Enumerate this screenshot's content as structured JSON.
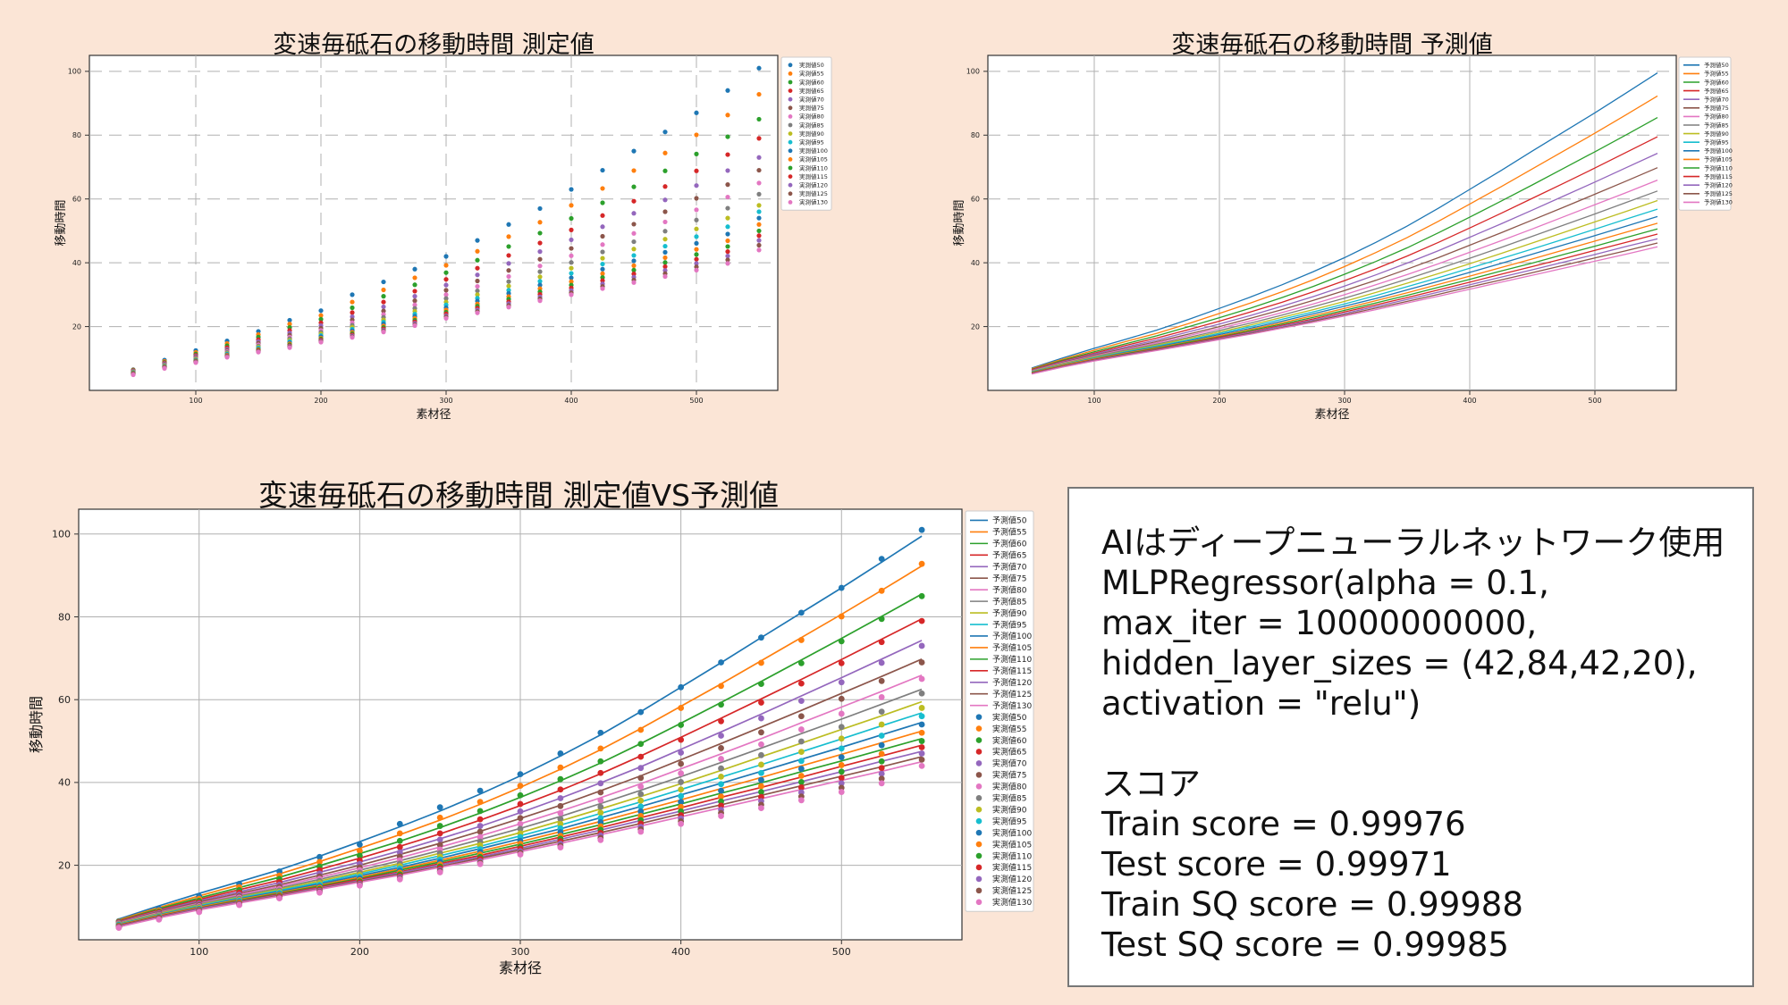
{
  "colors": [
    "#1f77b4",
    "#ff7f0e",
    "#2ca02c",
    "#d62728",
    "#9467bd",
    "#8c564b",
    "#e377c2",
    "#7f7f7f",
    "#bcbd22",
    "#17becf",
    "#1f77b4",
    "#ff7f0e",
    "#2ca02c",
    "#d62728",
    "#9467bd",
    "#8c564b",
    "#e377c2"
  ],
  "chart_data": [
    {
      "type": "scatter",
      "title": "変速毎砥石の移動時間 測定値",
      "xlabel": "素材径",
      "ylabel": "移動時間",
      "xlim": [
        15,
        565
      ],
      "ylim": [
        0,
        105
      ],
      "xticks": [
        100,
        200,
        300,
        400,
        500
      ],
      "yticks": [
        20,
        40,
        60,
        80,
        100
      ],
      "grid": true,
      "legend_position": "right",
      "x": [
        50,
        75,
        100,
        125,
        150,
        175,
        200,
        225,
        250,
        275,
        300,
        325,
        350,
        375,
        400,
        425,
        450,
        475,
        500,
        525,
        550
      ],
      "series": [
        {
          "name": "実測値50",
          "values": [
            6.5,
            9.5,
            12.5,
            15.5,
            18.5,
            22.0,
            25.0,
            30.0,
            34.0,
            38.0,
            42.0,
            47.0,
            52.0,
            57.0,
            63.0,
            69.0,
            75.0,
            81.0,
            87.0,
            94.0,
            101.0
          ]
        },
        {
          "name": "実測値55",
          "values": [
            6.4,
            9.1,
            11.9,
            14.7,
            17.5,
            20.8,
            23.5,
            27.7,
            31.5,
            35.3,
            39.2,
            43.6,
            48.2,
            52.7,
            58.0,
            63.3,
            68.9,
            74.4,
            80.1,
            86.3,
            92.8
          ]
        },
        {
          "name": "実測値60",
          "values": [
            6.3,
            8.8,
            11.4,
            14.0,
            16.7,
            19.7,
            22.3,
            25.9,
            29.5,
            33.1,
            36.9,
            40.8,
            45.1,
            49.3,
            53.9,
            58.8,
            63.8,
            68.8,
            74.1,
            79.5,
            85.0
          ]
        },
        {
          "name": "実測値65",
          "values": [
            6.2,
            8.6,
            11.0,
            13.4,
            15.9,
            18.8,
            21.2,
            24.4,
            27.7,
            31.1,
            34.8,
            38.3,
            42.3,
            46.2,
            50.3,
            54.8,
            59.3,
            63.9,
            68.8,
            73.9,
            79.0
          ]
        },
        {
          "name": "実測値70",
          "values": [
            6.1,
            8.4,
            10.7,
            12.9,
            15.3,
            18.0,
            20.3,
            23.1,
            26.2,
            29.5,
            33.0,
            36.2,
            39.8,
            43.5,
            47.2,
            51.3,
            55.5,
            59.7,
            64.2,
            68.9,
            73.0
          ]
        },
        {
          "name": "実測値75",
          "values": [
            6.0,
            8.2,
            10.4,
            12.5,
            14.8,
            17.3,
            19.5,
            22.1,
            24.9,
            28.1,
            31.4,
            34.3,
            37.6,
            41.1,
            44.5,
            48.3,
            52.1,
            56.0,
            60.2,
            64.5,
            69.0
          ]
        },
        {
          "name": "実測値80",
          "values": [
            5.9,
            8.0,
            10.1,
            12.2,
            14.3,
            16.7,
            18.8,
            21.2,
            23.8,
            26.8,
            30.0,
            32.6,
            35.7,
            39.0,
            42.2,
            45.7,
            49.2,
            52.8,
            56.6,
            60.6,
            65.0
          ]
        },
        {
          "name": "実測値85",
          "values": [
            5.8,
            7.9,
            9.9,
            11.9,
            13.9,
            16.2,
            18.2,
            20.4,
            22.9,
            25.7,
            28.8,
            31.2,
            34.1,
            37.2,
            40.1,
            43.4,
            46.6,
            49.9,
            53.4,
            57.1,
            61.5
          ]
        },
        {
          "name": "実測値90",
          "values": [
            5.7,
            7.7,
            9.7,
            11.6,
            13.6,
            15.7,
            17.7,
            19.8,
            22.1,
            24.8,
            27.7,
            30.0,
            32.7,
            35.6,
            38.3,
            41.4,
            44.3,
            47.4,
            50.6,
            54.0,
            58.0
          ]
        },
        {
          "name": "実測値95",
          "values": [
            5.6,
            7.6,
            9.5,
            11.4,
            13.3,
            15.3,
            17.2,
            19.2,
            21.4,
            23.9,
            26.8,
            28.9,
            31.4,
            34.2,
            36.7,
            39.6,
            42.3,
            45.2,
            48.2,
            51.3,
            56.0
          ]
        },
        {
          "name": "実測値100",
          "values": [
            5.5,
            7.5,
            9.4,
            11.2,
            13.0,
            14.9,
            16.8,
            18.7,
            20.8,
            23.2,
            25.9,
            28.0,
            30.4,
            33.0,
            35.3,
            38.0,
            40.6,
            43.3,
            46.1,
            49.0,
            54.0
          ]
        },
        {
          "name": "実測値105",
          "values": [
            5.4,
            7.4,
            9.2,
            11.0,
            12.8,
            14.6,
            16.4,
            18.2,
            20.2,
            22.6,
            25.2,
            27.1,
            29.4,
            31.9,
            34.1,
            36.6,
            39.1,
            41.6,
            44.2,
            46.9,
            52.0
          ]
        },
        {
          "name": "実測値110",
          "values": [
            5.3,
            7.3,
            9.1,
            10.8,
            12.6,
            14.3,
            16.1,
            17.8,
            19.7,
            22.0,
            24.5,
            26.4,
            28.6,
            30.9,
            33.0,
            35.4,
            37.7,
            40.1,
            42.6,
            45.1,
            50.0
          ]
        },
        {
          "name": "実測値115",
          "values": [
            5.2,
            7.2,
            9.0,
            10.7,
            12.4,
            14.0,
            15.8,
            17.4,
            19.3,
            21.5,
            24.0,
            25.8,
            27.8,
            30.1,
            32.1,
            34.4,
            36.5,
            38.8,
            41.1,
            43.5,
            48.5
          ]
        },
        {
          "name": "実測値120",
          "values": [
            5.1,
            7.1,
            8.9,
            10.6,
            12.2,
            13.8,
            15.5,
            17.1,
            18.9,
            21.0,
            23.4,
            25.2,
            27.2,
            29.3,
            31.3,
            33.4,
            35.5,
            37.6,
            39.8,
            42.1,
            47.0
          ]
        },
        {
          "name": "実測値125",
          "values": [
            5.0,
            7.0,
            8.8,
            10.5,
            12.1,
            13.6,
            15.3,
            16.8,
            18.6,
            20.6,
            23.0,
            24.7,
            26.6,
            28.7,
            30.6,
            32.6,
            34.6,
            36.6,
            38.7,
            40.9,
            45.5
          ]
        },
        {
          "name": "実測値130",
          "values": [
            4.9,
            6.9,
            8.7,
            10.4,
            12.0,
            13.4,
            15.1,
            16.6,
            18.3,
            20.3,
            22.6,
            24.3,
            26.1,
            28.1,
            30.0,
            31.9,
            33.8,
            35.7,
            37.7,
            39.8,
            44.0
          ]
        }
      ]
    },
    {
      "type": "line",
      "title": "変速毎砥石の移動時間 予測値",
      "xlabel": "素材径",
      "ylabel": "移動時間",
      "xlim": [
        15,
        565
      ],
      "ylim": [
        0,
        105
      ],
      "xticks": [
        100,
        200,
        300,
        400,
        500
      ],
      "yticks": [
        20,
        40,
        60,
        80,
        100
      ],
      "grid": true,
      "legend_position": "right",
      "x": [
        50,
        75,
        100,
        125,
        150,
        175,
        200,
        225,
        250,
        275,
        300,
        325,
        350,
        375,
        400,
        425,
        450,
        475,
        500,
        525,
        550
      ],
      "series": [
        {
          "name": "予測値50",
          "values": [
            7.0,
            10.2,
            13.2,
            16.0,
            18.9,
            22.2,
            25.7,
            29.3,
            33.1,
            37.2,
            41.6,
            46.4,
            51.5,
            57.1,
            63.0,
            68.9,
            75.0,
            81.0,
            87.0,
            93.2,
            99.5
          ]
        },
        {
          "name": "予測値55",
          "values": [
            6.8,
            9.8,
            12.6,
            15.3,
            17.9,
            20.9,
            24.1,
            27.4,
            30.9,
            34.7,
            38.8,
            43.2,
            47.9,
            53.0,
            58.4,
            63.8,
            69.4,
            75.0,
            80.6,
            86.4,
            92.3
          ]
        },
        {
          "name": "予測値60",
          "values": [
            6.6,
            9.5,
            12.1,
            14.6,
            17.1,
            19.9,
            22.8,
            25.8,
            29.1,
            32.6,
            36.4,
            40.4,
            44.7,
            49.4,
            54.3,
            59.3,
            64.4,
            69.6,
            74.8,
            80.1,
            85.5
          ]
        },
        {
          "name": "予測値65",
          "values": [
            6.5,
            9.2,
            11.7,
            14.1,
            16.4,
            19.0,
            21.7,
            24.6,
            27.6,
            30.9,
            34.4,
            38.1,
            42.1,
            46.4,
            50.9,
            55.5,
            60.2,
            64.9,
            69.7,
            74.6,
            79.5
          ]
        },
        {
          "name": "予測値70",
          "values": [
            6.3,
            9.0,
            11.4,
            13.6,
            15.8,
            18.3,
            20.8,
            23.5,
            26.4,
            29.4,
            32.7,
            36.2,
            39.9,
            43.8,
            48.0,
            52.2,
            56.5,
            60.9,
            65.3,
            69.8,
            74.3
          ]
        },
        {
          "name": "予測値75",
          "values": [
            6.2,
            8.8,
            11.1,
            13.2,
            15.3,
            17.6,
            20.0,
            22.6,
            25.3,
            28.2,
            31.3,
            34.5,
            38.0,
            41.6,
            45.5,
            49.4,
            53.4,
            57.4,
            61.5,
            65.6,
            69.8
          ]
        },
        {
          "name": "予測値80",
          "values": [
            6.1,
            8.6,
            10.8,
            12.9,
            14.9,
            17.1,
            19.4,
            21.8,
            24.4,
            27.1,
            30.0,
            33.1,
            36.3,
            39.7,
            43.3,
            46.9,
            50.6,
            54.4,
            58.2,
            62.0,
            65.9
          ]
        },
        {
          "name": "予測値85",
          "values": [
            6.0,
            8.4,
            10.6,
            12.6,
            14.5,
            16.6,
            18.8,
            21.1,
            23.6,
            26.2,
            28.9,
            31.8,
            34.9,
            38.1,
            41.4,
            44.8,
            48.3,
            51.8,
            55.3,
            58.9,
            62.5
          ]
        },
        {
          "name": "予測値90",
          "values": [
            5.9,
            8.3,
            10.4,
            12.3,
            14.2,
            16.2,
            18.3,
            20.5,
            22.9,
            25.3,
            27.9,
            30.7,
            33.6,
            36.6,
            39.7,
            42.9,
            46.2,
            49.5,
            52.8,
            56.1,
            59.5
          ]
        },
        {
          "name": "予測値95",
          "values": [
            5.8,
            8.1,
            10.2,
            12.1,
            13.9,
            15.8,
            17.9,
            20.0,
            22.3,
            24.6,
            27.1,
            29.7,
            32.5,
            35.3,
            38.3,
            41.3,
            44.3,
            47.4,
            50.5,
            53.7,
            56.8
          ]
        },
        {
          "name": "予測値100",
          "values": [
            5.7,
            8.0,
            10.0,
            11.9,
            13.6,
            15.5,
            17.5,
            19.5,
            21.7,
            24.0,
            26.4,
            28.8,
            31.5,
            34.2,
            37.0,
            39.8,
            42.7,
            45.6,
            48.5,
            51.5,
            54.5
          ]
        },
        {
          "name": "予測値105",
          "values": [
            5.6,
            7.9,
            9.9,
            11.7,
            13.4,
            15.2,
            17.1,
            19.1,
            21.2,
            23.4,
            25.7,
            28.1,
            30.6,
            33.2,
            35.8,
            38.5,
            41.2,
            44.0,
            46.8,
            49.6,
            52.4
          ]
        },
        {
          "name": "予測値110",
          "values": [
            5.5,
            7.7,
            9.7,
            11.5,
            13.2,
            15.0,
            16.8,
            18.8,
            20.8,
            22.9,
            25.1,
            27.4,
            29.8,
            32.3,
            34.8,
            37.4,
            39.9,
            42.6,
            45.2,
            47.9,
            50.6
          ]
        },
        {
          "name": "予測値115",
          "values": [
            5.4,
            7.6,
            9.6,
            11.3,
            13.0,
            14.7,
            16.6,
            18.4,
            20.4,
            22.4,
            24.6,
            26.8,
            29.1,
            31.5,
            33.9,
            36.4,
            38.8,
            41.3,
            43.9,
            46.4,
            49.0
          ]
        },
        {
          "name": "予測値120",
          "values": [
            5.3,
            7.5,
            9.5,
            11.2,
            12.8,
            14.5,
            16.3,
            18.2,
            20.1,
            22.0,
            24.1,
            26.3,
            28.5,
            30.8,
            33.1,
            35.5,
            37.8,
            40.2,
            42.6,
            45.1,
            47.5
          ]
        },
        {
          "name": "予測値125",
          "values": [
            5.2,
            7.4,
            9.3,
            11.0,
            12.7,
            14.3,
            16.1,
            17.9,
            19.7,
            21.7,
            23.7,
            25.8,
            27.9,
            30.1,
            32.4,
            34.6,
            36.9,
            39.2,
            41.5,
            43.8,
            46.2
          ]
        },
        {
          "name": "予測値130",
          "values": [
            5.1,
            7.3,
            9.2,
            10.9,
            12.5,
            14.2,
            15.9,
            17.6,
            19.5,
            21.3,
            23.3,
            25.3,
            27.4,
            29.5,
            31.7,
            33.9,
            36.1,
            38.3,
            40.5,
            42.7,
            45.0
          ]
        }
      ]
    },
    {
      "type": "line",
      "title": "変速毎砥石の移動時間 測定値VS予測値",
      "xlabel": "素材径",
      "ylabel": "移動時間",
      "xlim": [
        25,
        575
      ],
      "ylim": [
        2,
        106
      ],
      "xticks": [
        100,
        200,
        300,
        400,
        500
      ],
      "yticks": [
        20,
        40,
        60,
        80,
        100
      ],
      "grid": true,
      "legend_position": "right",
      "line_series_ref": "予測値",
      "scatter_series_ref": "実測値"
    }
  ],
  "legend": {
    "pred_labels": [
      "予測値50",
      "予測値55",
      "予測値60",
      "予測値65",
      "予測値70",
      "予測値75",
      "予測値80",
      "予測値85",
      "予測値90",
      "予測値95",
      "予測値100",
      "予測値105",
      "予測値110",
      "予測値115",
      "予測値120",
      "予測値125",
      "予測値130"
    ],
    "meas_labels": [
      "実測値50",
      "実測値55",
      "実測値60",
      "実測値65",
      "実測値70",
      "実測値75",
      "実測値80",
      "実測値85",
      "実測値90",
      "実測値95",
      "実測値100",
      "実測値105",
      "実測値110",
      "実測値115",
      "実測値120",
      "実測値125",
      "実測値130"
    ]
  },
  "info": {
    "line1": "AIはディープニューラルネットワーク使用",
    "line2": "MLPRegressor(alpha = 0.1,",
    "line3": "max_iter = 10000000000,",
    "line4": "hidden_layer_sizes = (42,84,42,20),",
    "line5": "activation = \"relu\")",
    "score_heading": "スコア",
    "train_score": "Train score = 0.99976",
    "test_score": "Test score = 0.99971",
    "train_sq_score": "Train SQ score = 0.99988",
    "test_sq_score": "Test SQ score = 0.99985"
  }
}
